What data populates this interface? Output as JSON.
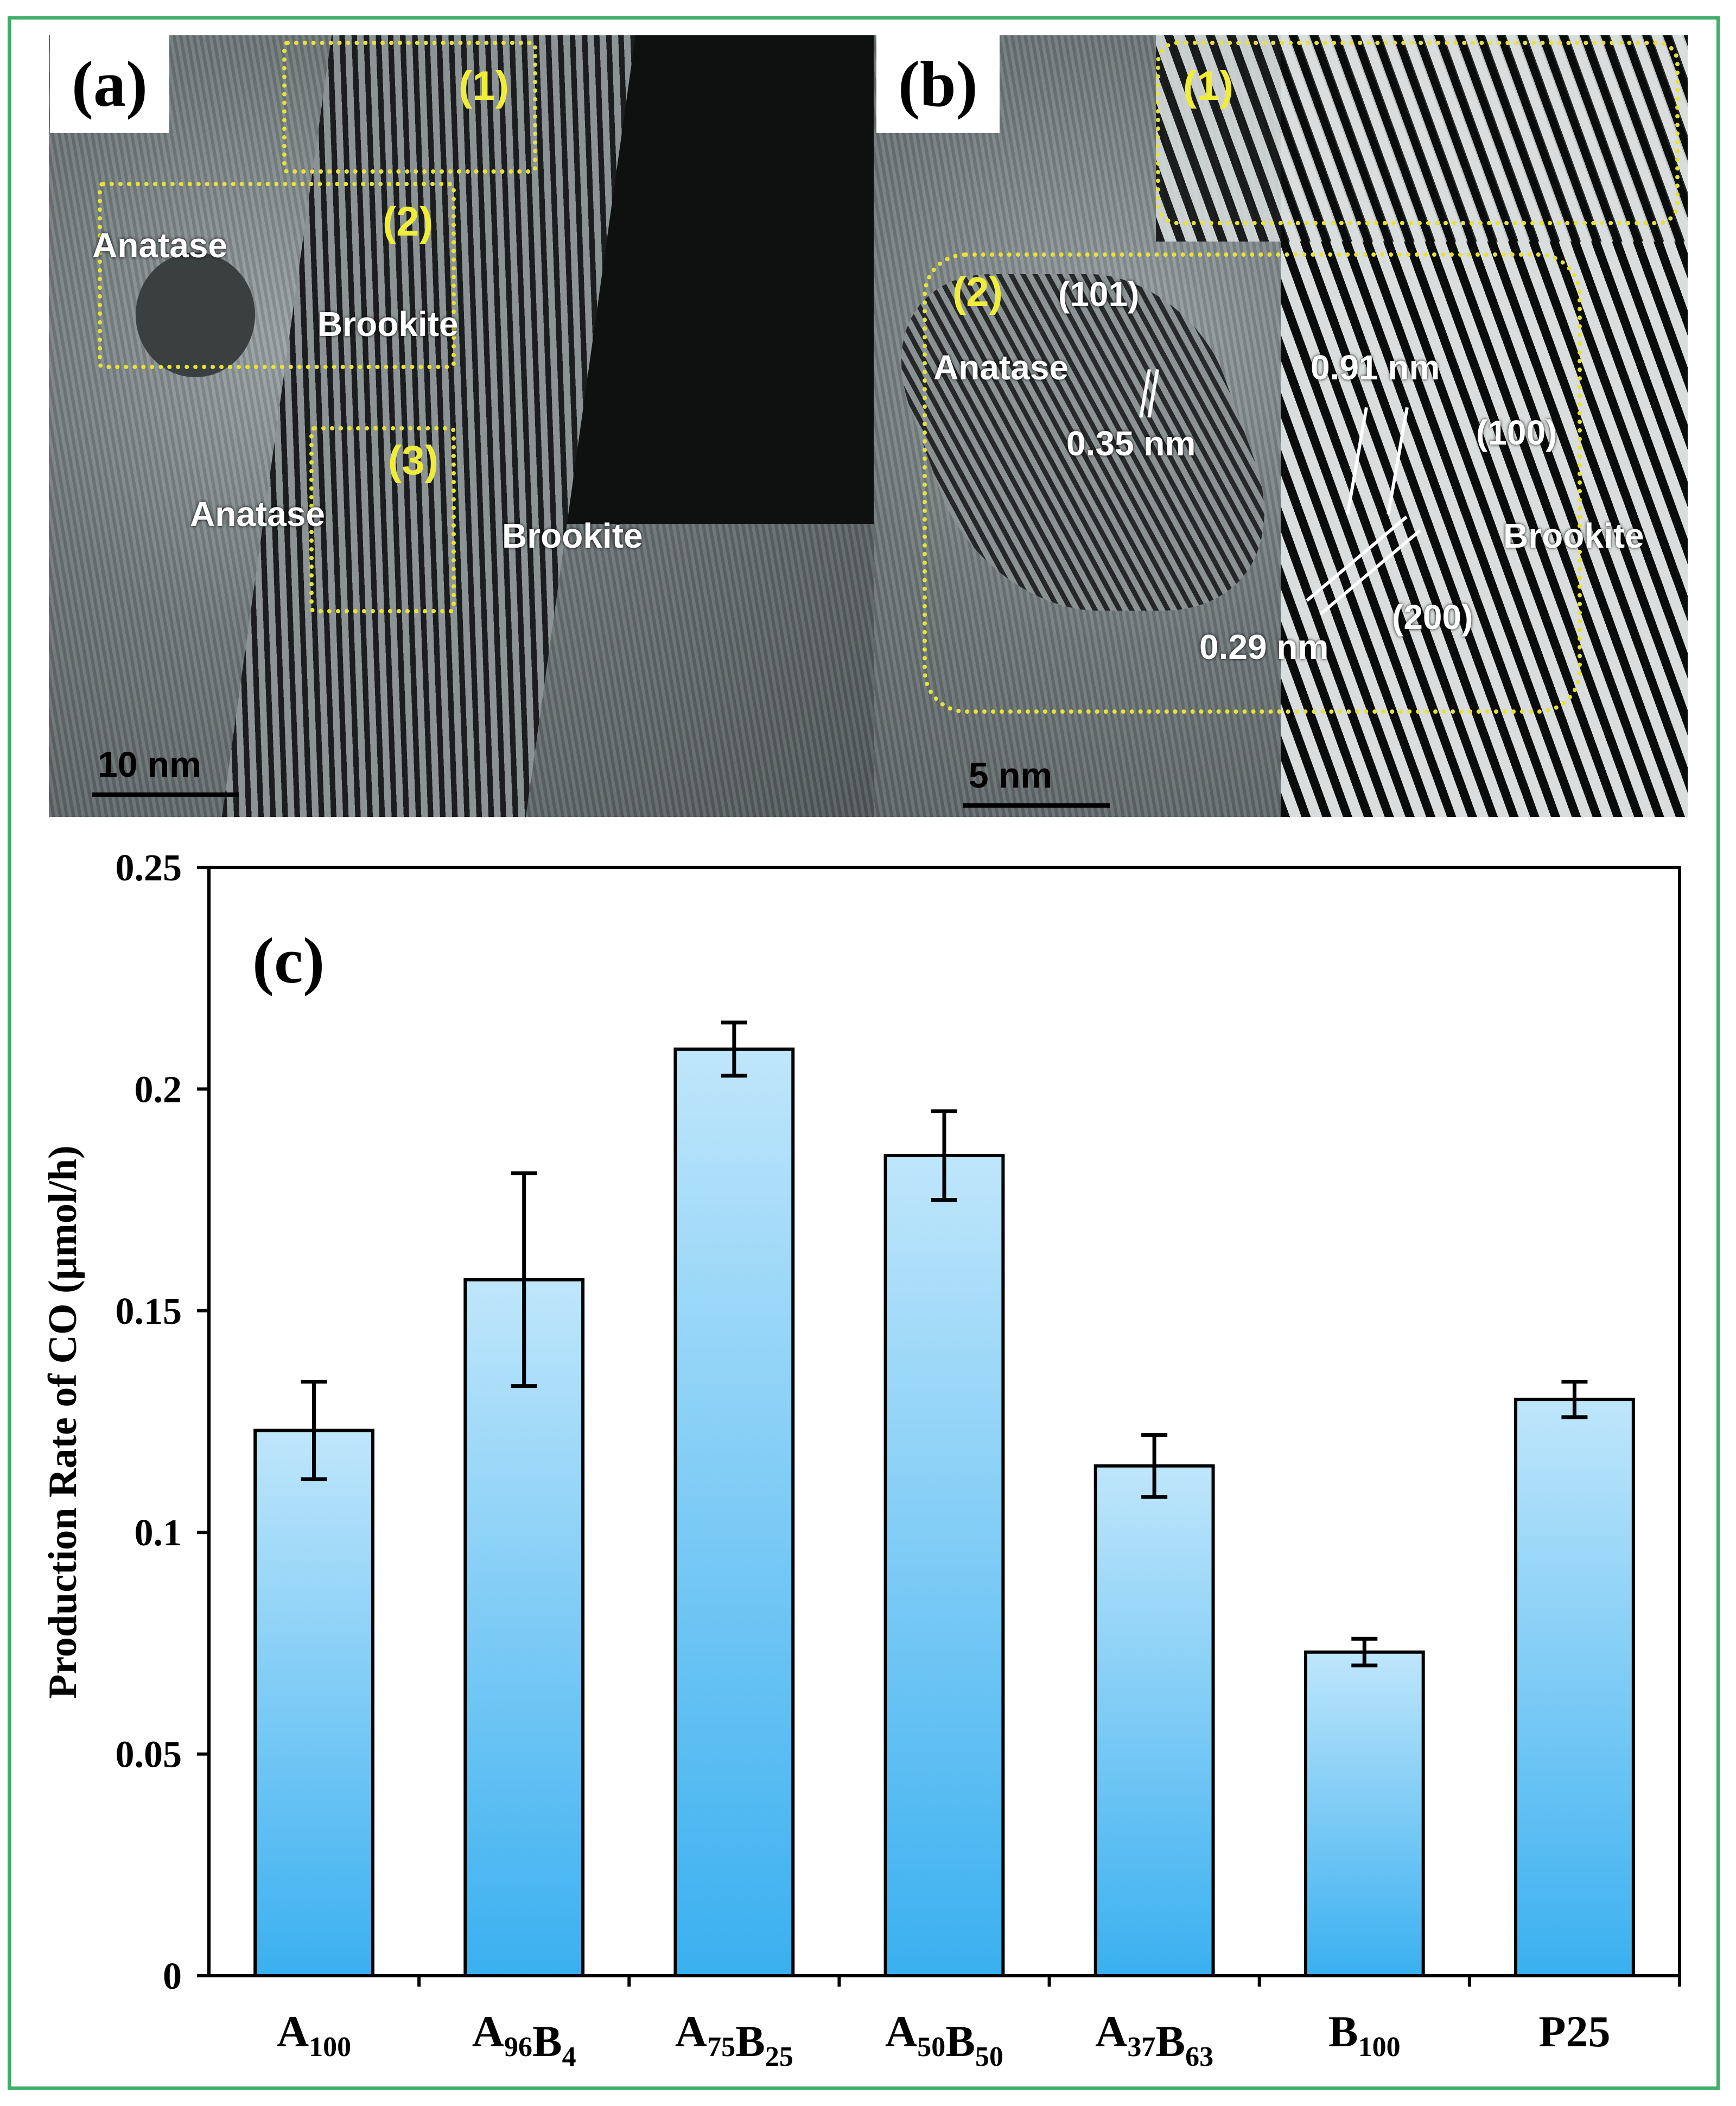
{
  "panels": {
    "a": {
      "letter": "(a)",
      "boxes": [
        "(1)",
        "(2)",
        "(3)"
      ],
      "labels": {
        "anatase_1": "Anatase",
        "brookite_1": "Brookite",
        "anatase_2": "Anatase",
        "brookite_2": "Brookite"
      },
      "scale": "10 nm"
    },
    "b": {
      "letter": "(b)",
      "boxes": [
        "(1)",
        "(2)"
      ],
      "labels": {
        "plane_101": "(101)",
        "anatase": "Anatase",
        "d_035": "0.35 nm",
        "d_091": "0.91 nm",
        "plane_100": "(100)",
        "brookite": "Brookite",
        "plane_200": "(200)",
        "d_029": "0.29 nm"
      },
      "scale": "5 nm"
    }
  },
  "chart_data": {
    "type": "bar",
    "panel_label": "(c)",
    "categories": [
      {
        "base": "A",
        "sub": "100",
        "base2": "",
        "sub2": ""
      },
      {
        "base": "A",
        "sub": "96",
        "base2": "B",
        "sub2": "4"
      },
      {
        "base": "A",
        "sub": "75",
        "base2": "B",
        "sub2": "25"
      },
      {
        "base": "A",
        "sub": "50",
        "base2": "B",
        "sub2": "50"
      },
      {
        "base": "A",
        "sub": "37",
        "base2": "B",
        "sub2": "63"
      },
      {
        "base": "B",
        "sub": "100",
        "base2": "",
        "sub2": ""
      },
      {
        "base": "P25",
        "sub": "",
        "base2": "",
        "sub2": ""
      }
    ],
    "values": [
      0.123,
      0.157,
      0.209,
      0.185,
      0.115,
      0.073,
      0.13
    ],
    "errors": [
      0.011,
      0.024,
      0.006,
      0.01,
      0.007,
      0.003,
      0.004
    ],
    "ylabel": "Production Rate of CO (µmol/h)",
    "ylim": [
      0,
      0.25
    ],
    "yticks": [
      "0",
      "0.05",
      "0.1",
      "0.15",
      "0.2",
      "0.25"
    ],
    "bar_color_top": "#bfe6fb",
    "bar_color_bottom": "#3ab0f0"
  }
}
